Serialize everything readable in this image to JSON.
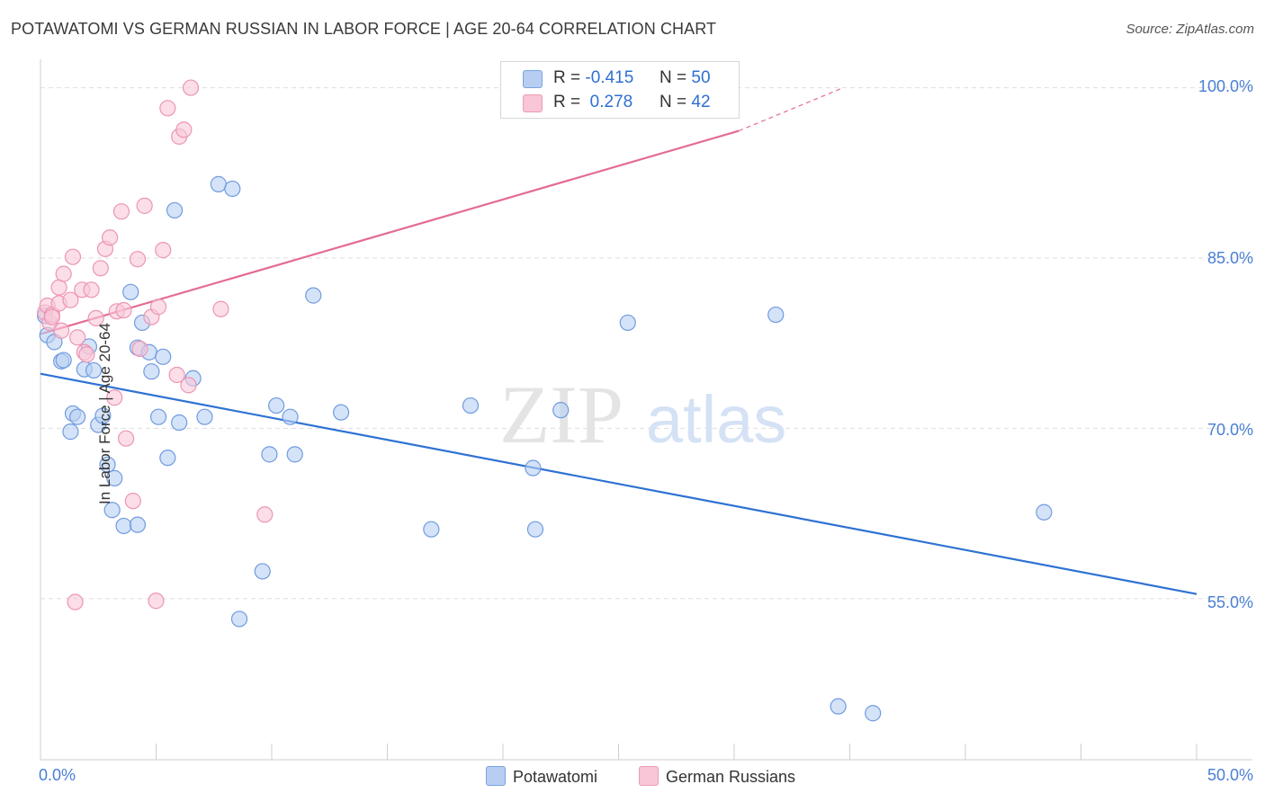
{
  "title": "POTAWATOMI VS GERMAN RUSSIAN IN LABOR FORCE | AGE 20-64 CORRELATION CHART",
  "source": "Source: ZipAtlas.com",
  "watermark": {
    "zip": "ZIP",
    "atlas": "atlas"
  },
  "legend": {
    "r_label": "R =",
    "n_label": "N =",
    "rows": [
      {
        "name": "Potawatomi",
        "r": "-0.415",
        "n": "50",
        "fill": "#b7cef2",
        "stroke": "#7aa3e0"
      },
      {
        "name": "German Russians",
        "r": "0.278",
        "n": "42",
        "fill": "#f8c6d6",
        "stroke": "#ec9ab5"
      }
    ]
  },
  "chart_data": {
    "type": "scatter",
    "title": "POTAWATOMI VS GERMAN RUSSIAN IN LABOR FORCE | AGE 20-64 CORRELATION CHART",
    "xlabel": "",
    "ylabel": "In Labor Force | Age 20-64",
    "xlim": [
      0,
      50
    ],
    "ylim": [
      40.8,
      102.5
    ],
    "x_tick_labels": [
      "0.0%",
      "50.0%"
    ],
    "y_ticks": [
      55,
      70,
      85,
      100
    ],
    "y_tick_labels": [
      "55.0%",
      "70.0%",
      "85.0%",
      "100.0%"
    ],
    "grid": true,
    "series": [
      {
        "name": "Potawatomi",
        "color": "#6f9be0",
        "fill": "#b9d0f3",
        "trend": {
          "x0": 0,
          "y0": 74.8,
          "x1": 50,
          "y1": 55.4,
          "color": "#2e72d2"
        },
        "points": [
          [
            0.3,
            78.2
          ],
          [
            0.6,
            77.6
          ],
          [
            0.9,
            75.9
          ],
          [
            1.0,
            76.0
          ],
          [
            1.3,
            69.7
          ],
          [
            1.4,
            71.3
          ],
          [
            1.6,
            71.0
          ],
          [
            1.9,
            75.2
          ],
          [
            2.1,
            77.2
          ],
          [
            2.3,
            75.1
          ],
          [
            2.5,
            70.3
          ],
          [
            2.7,
            71.1
          ],
          [
            2.9,
            66.8
          ],
          [
            3.1,
            62.8
          ],
          [
            3.2,
            65.6
          ],
          [
            3.6,
            61.4
          ],
          [
            3.9,
            82.0
          ],
          [
            4.2,
            61.5
          ],
          [
            4.2,
            77.1
          ],
          [
            4.4,
            79.3
          ],
          [
            4.7,
            76.7
          ],
          [
            4.8,
            75.0
          ],
          [
            5.1,
            71.0
          ],
          [
            5.3,
            76.3
          ],
          [
            5.5,
            67.4
          ],
          [
            5.8,
            89.2
          ],
          [
            6.0,
            70.5
          ],
          [
            6.6,
            74.4
          ],
          [
            7.1,
            71.0
          ],
          [
            7.7,
            91.5
          ],
          [
            8.3,
            91.1
          ],
          [
            8.6,
            53.2
          ],
          [
            9.6,
            57.4
          ],
          [
            9.9,
            67.7
          ],
          [
            10.2,
            72.0
          ],
          [
            10.8,
            71.0
          ],
          [
            11.0,
            67.7
          ],
          [
            11.8,
            81.7
          ],
          [
            13.0,
            71.4
          ],
          [
            16.9,
            61.1
          ],
          [
            18.6,
            72.0
          ],
          [
            21.3,
            66.5
          ],
          [
            21.4,
            61.1
          ],
          [
            22.5,
            71.6
          ],
          [
            25.4,
            79.3
          ],
          [
            31.8,
            80.0
          ],
          [
            34.5,
            45.5
          ],
          [
            36.0,
            44.9
          ],
          [
            43.4,
            62.6
          ],
          [
            0.2,
            79.9
          ]
        ]
      },
      {
        "name": "German Russians",
        "color": "#ec95b3",
        "fill": "#f9c8d8",
        "trend": {
          "x0": 0,
          "y0": 78.3,
          "x1": 30.2,
          "y1": 96.2,
          "x_dash_end": 34.6,
          "y_dash_end": 99.9,
          "color": "#e46b96"
        },
        "points": [
          [
            0.2,
            80.2
          ],
          [
            0.3,
            80.8
          ],
          [
            0.4,
            79.3
          ],
          [
            0.5,
            80.0
          ],
          [
            0.5,
            79.8
          ],
          [
            0.8,
            82.4
          ],
          [
            0.8,
            81.0
          ],
          [
            0.9,
            78.6
          ],
          [
            1.0,
            83.6
          ],
          [
            1.3,
            81.3
          ],
          [
            1.4,
            85.1
          ],
          [
            1.6,
            78.0
          ],
          [
            1.8,
            82.2
          ],
          [
            1.9,
            76.7
          ],
          [
            2.0,
            76.5
          ],
          [
            2.2,
            82.2
          ],
          [
            2.4,
            79.7
          ],
          [
            2.6,
            84.1
          ],
          [
            2.8,
            85.8
          ],
          [
            3.0,
            86.8
          ],
          [
            3.2,
            72.7
          ],
          [
            3.3,
            80.3
          ],
          [
            3.5,
            89.1
          ],
          [
            3.6,
            80.4
          ],
          [
            3.7,
            69.1
          ],
          [
            4.0,
            63.6
          ],
          [
            4.2,
            84.9
          ],
          [
            4.3,
            77.0
          ],
          [
            4.5,
            89.6
          ],
          [
            4.8,
            79.8
          ],
          [
            5.0,
            54.8
          ],
          [
            5.1,
            80.7
          ],
          [
            5.3,
            85.7
          ],
          [
            5.5,
            98.2
          ],
          [
            5.9,
            74.7
          ],
          [
            6.0,
            95.7
          ],
          [
            6.2,
            96.3
          ],
          [
            6.4,
            73.8
          ],
          [
            6.5,
            100.0
          ],
          [
            7.8,
            80.5
          ],
          [
            9.7,
            62.4
          ],
          [
            1.5,
            54.7
          ]
        ]
      }
    ]
  }
}
